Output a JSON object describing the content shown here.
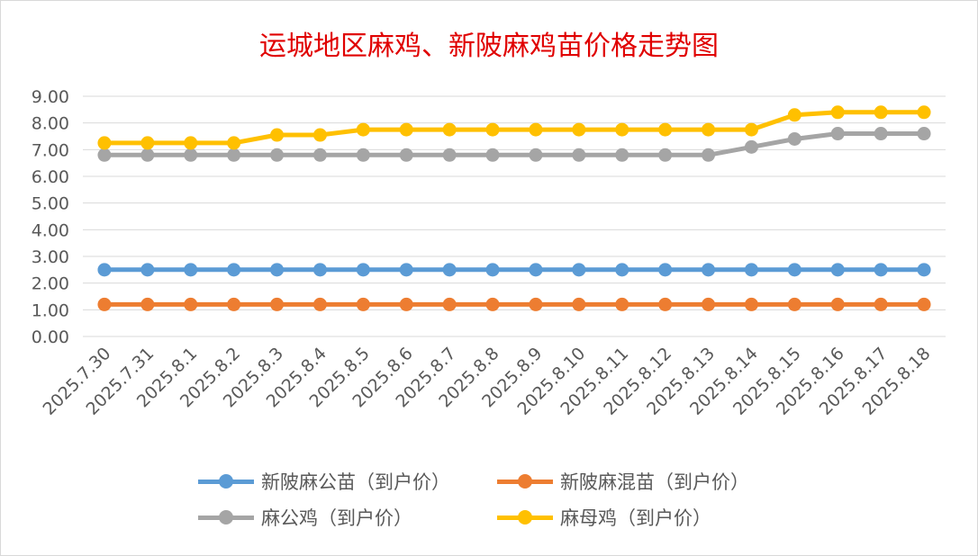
{
  "chart_data": {
    "type": "line",
    "title": "运城地区麻鸡、新陂麻鸡苗价格走势图",
    "categories": [
      "2025.7.30",
      "2025.7.31",
      "2025.8.1",
      "2025.8.2",
      "2025.8.3",
      "2025.8.4",
      "2025.8.5",
      "2025.8.6",
      "2025.8.7",
      "2025.8.8",
      "2025.8.9",
      "2025.8.10",
      "2025.8.11",
      "2025.8.12",
      "2025.8.13",
      "2025.8.14",
      "2025.8.15",
      "2025.8.16",
      "2025.8.17",
      "2025.8.18"
    ],
    "ylim": [
      0,
      9
    ],
    "yticks": [
      "0.00",
      "1.00",
      "2.00",
      "3.00",
      "4.00",
      "5.00",
      "6.00",
      "7.00",
      "8.00",
      "9.00"
    ],
    "grid": true,
    "legend_position": "bottom",
    "series": [
      {
        "name": "新陂麻公苗（到户价）",
        "color": "#5b9bd5",
        "values": [
          2.5,
          2.5,
          2.5,
          2.5,
          2.5,
          2.5,
          2.5,
          2.5,
          2.5,
          2.5,
          2.5,
          2.5,
          2.5,
          2.5,
          2.5,
          2.5,
          2.5,
          2.5,
          2.5,
          2.5
        ]
      },
      {
        "name": "新陂麻混苗（到户价）",
        "color": "#ed7d31",
        "values": [
          1.2,
          1.2,
          1.2,
          1.2,
          1.2,
          1.2,
          1.2,
          1.2,
          1.2,
          1.2,
          1.2,
          1.2,
          1.2,
          1.2,
          1.2,
          1.2,
          1.2,
          1.2,
          1.2,
          1.2
        ]
      },
      {
        "name": "麻公鸡（到户价）",
        "color": "#a5a5a5",
        "values": [
          6.8,
          6.8,
          6.8,
          6.8,
          6.8,
          6.8,
          6.8,
          6.8,
          6.8,
          6.8,
          6.8,
          6.8,
          6.8,
          6.8,
          6.8,
          7.1,
          7.4,
          7.6,
          7.6,
          7.6
        ]
      },
      {
        "name": "麻母鸡（到户价）",
        "color": "#ffc000",
        "values": [
          7.25,
          7.25,
          7.25,
          7.25,
          7.55,
          7.55,
          7.75,
          7.75,
          7.75,
          7.75,
          7.75,
          7.75,
          7.75,
          7.75,
          7.75,
          7.75,
          8.3,
          8.4,
          8.4,
          8.4
        ]
      }
    ]
  }
}
